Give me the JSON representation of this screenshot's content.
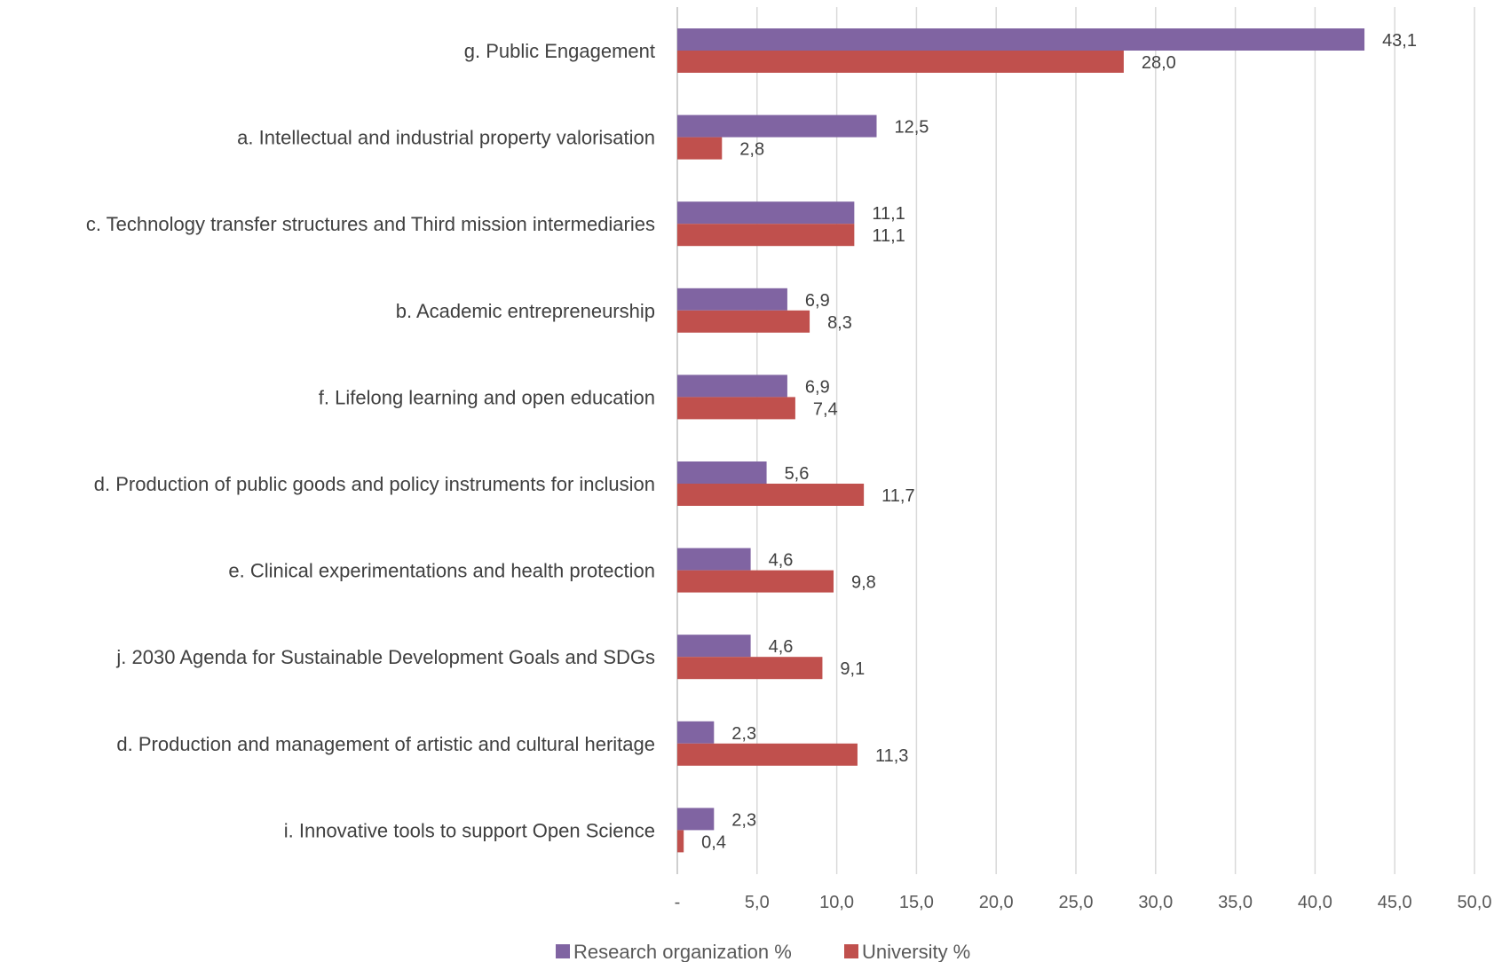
{
  "chart_data": {
    "type": "bar",
    "orientation": "horizontal",
    "categories": [
      "g. Public Engagement",
      "a. Intellectual and industrial property valorisation",
      "c. Technology transfer structures and Third mission intermediaries",
      "b. Academic entrepreneurship",
      "f. Lifelong learning and open education",
      "d. Production of public goods and policy instruments for inclusion",
      "e. Clinical experimentations and health protection",
      "j. 2030 Agenda for Sustainable Development Goals and SDGs",
      "d. Production and management of artistic and cultural heritage",
      "i. Innovative tools to support Open Science"
    ],
    "series": [
      {
        "name": "Research organization %",
        "color": "#8064a2",
        "values": [
          43.1,
          12.5,
          11.1,
          6.9,
          6.9,
          5.6,
          4.6,
          4.6,
          2.3,
          2.3
        ],
        "labels": [
          "43,1",
          "12,5",
          "11,1",
          "6,9",
          "6,9",
          "5,6",
          "4,6",
          "4,6",
          "2,3",
          "2,3"
        ]
      },
      {
        "name": "University %",
        "color": "#c0504d",
        "values": [
          28.0,
          2.8,
          11.1,
          8.3,
          7.4,
          11.7,
          9.8,
          9.1,
          11.3,
          0.4
        ],
        "labels": [
          "28,0",
          "2,8",
          "11,1",
          "8,3",
          "7,4",
          "11,7",
          "9,8",
          "9,1",
          "11,3",
          "0,4"
        ]
      }
    ],
    "xlim": [
      0,
      50
    ],
    "x_ticks": [
      0,
      5,
      10,
      15,
      20,
      25,
      30,
      35,
      40,
      45,
      50
    ],
    "x_tick_labels": [
      "-",
      "5,0",
      "10,0",
      "15,0",
      "20,0",
      "25,0",
      "30,0",
      "35,0",
      "40,0",
      "45,0",
      "50,0"
    ],
    "grid": true,
    "legend_position": "bottom"
  }
}
